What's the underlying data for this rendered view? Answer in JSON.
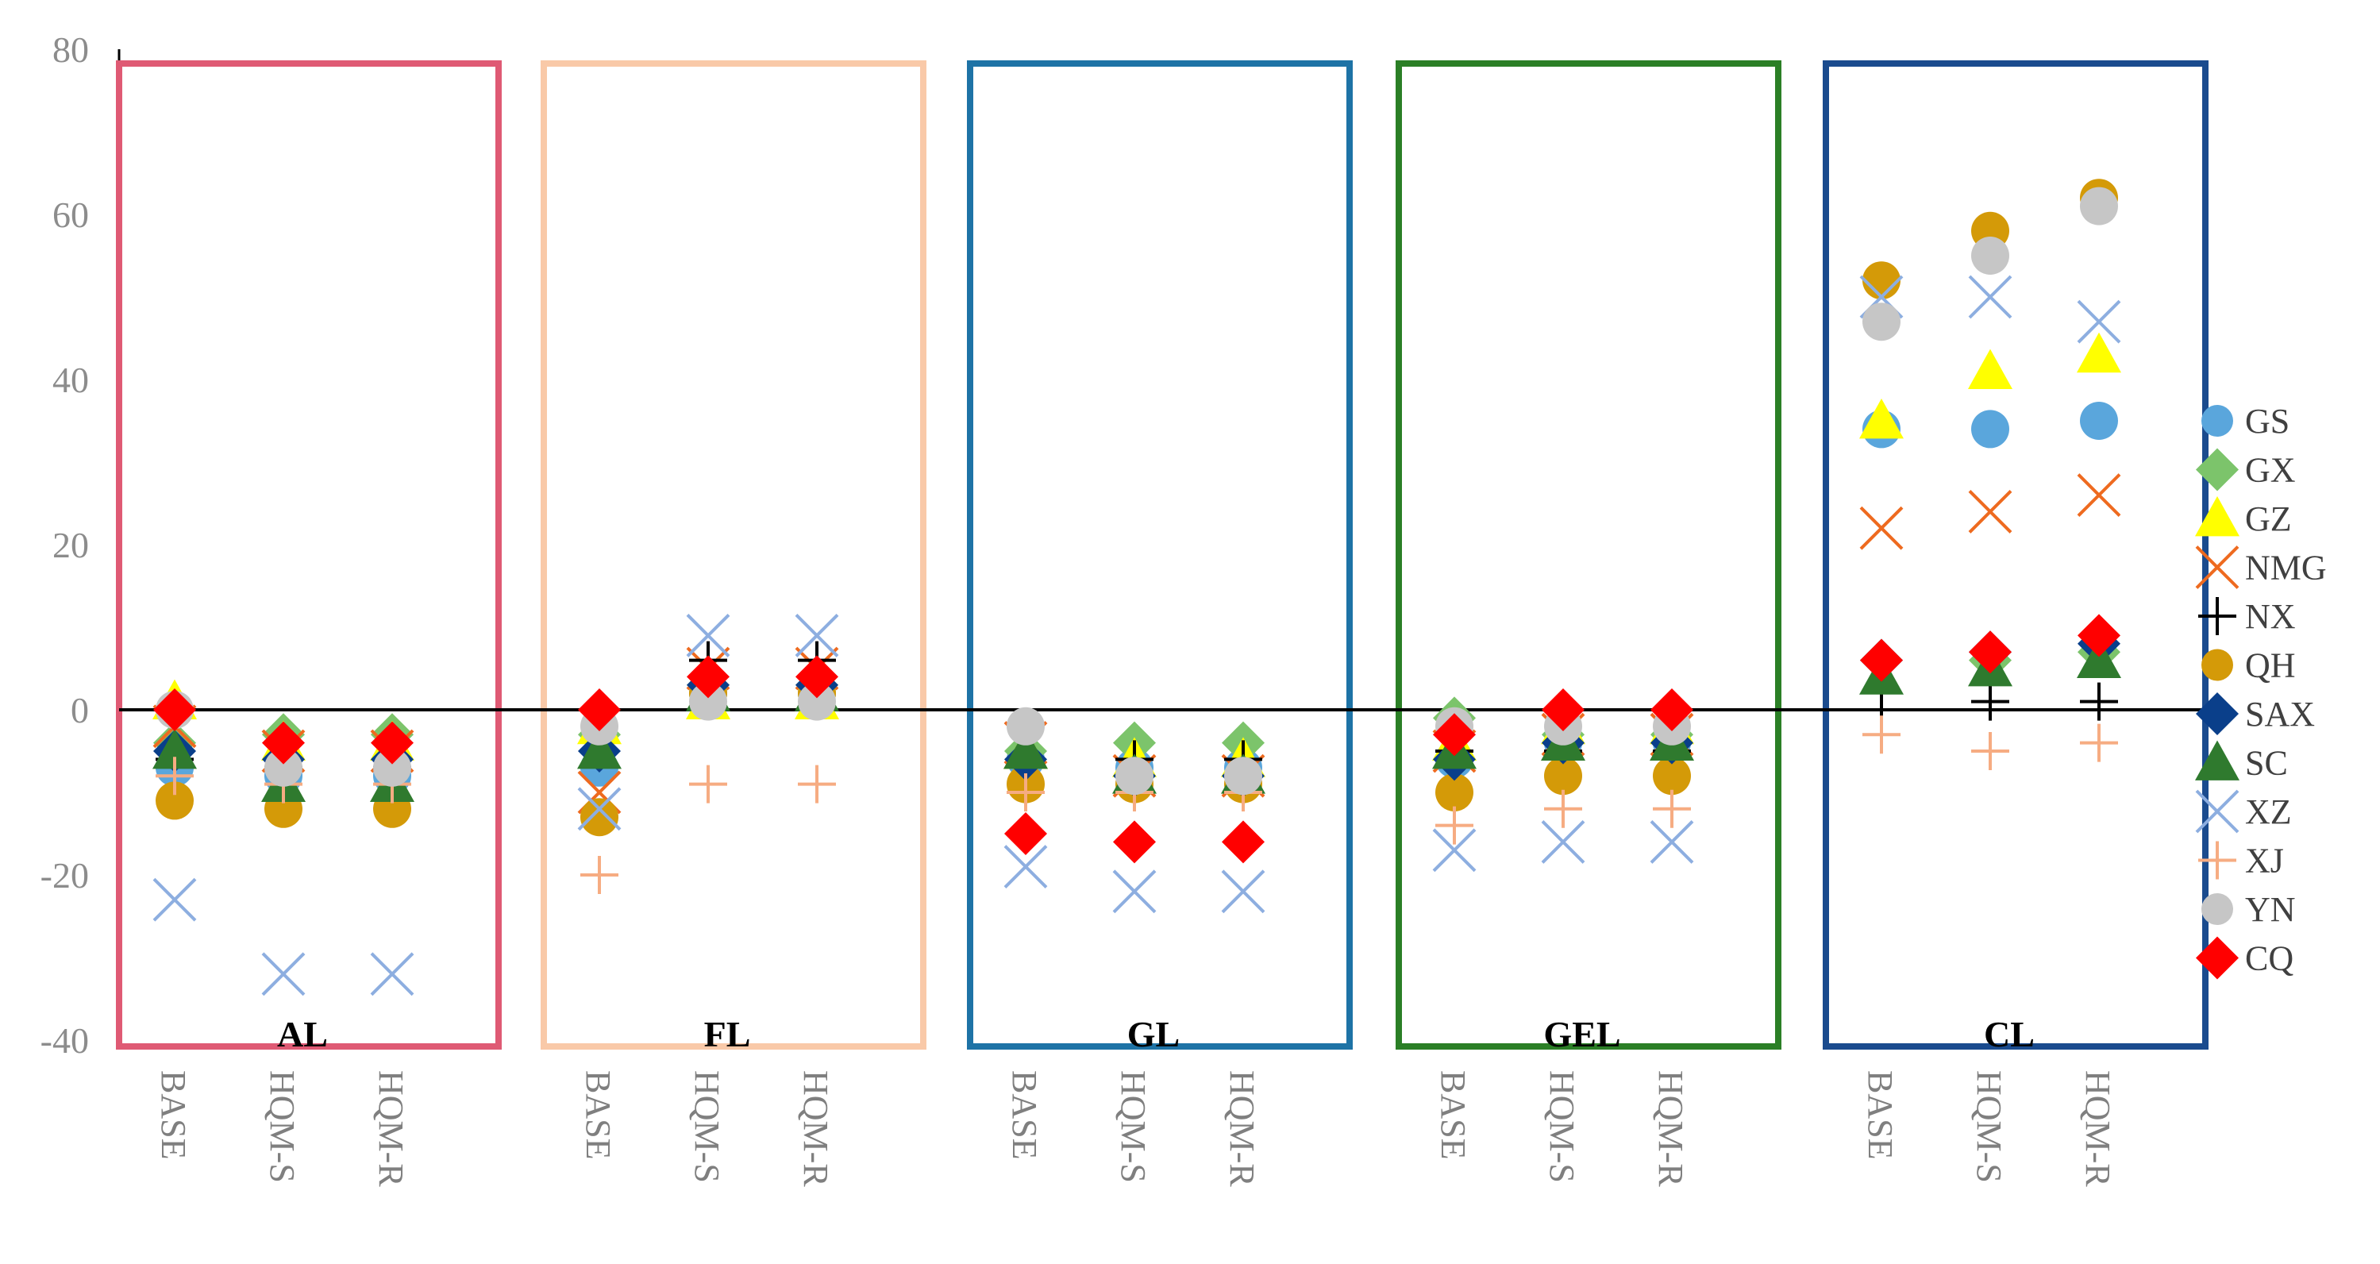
{
  "chart_data": {
    "type": "scatter",
    "title": "",
    "xlabel": "",
    "ylabel": "",
    "ylim": [
      -40,
      80
    ],
    "yticks": [
      "80",
      "60",
      "40",
      "20",
      "0",
      "-20",
      "-40"
    ],
    "ytick_values": [
      80,
      60,
      40,
      20,
      0,
      -20,
      -40
    ],
    "scenarios": [
      "BASE",
      "HQM-S",
      "HQM-R"
    ],
    "groups": [
      {
        "label": "AL",
        "color": "#df5a74"
      },
      {
        "label": "FL",
        "color": "#f9c9a8"
      },
      {
        "label": "GL",
        "color": "#1e73a6"
      },
      {
        "label": "GEL",
        "color": "#2b7f26"
      },
      {
        "label": "CL",
        "color": "#1a4b8e"
      }
    ],
    "series": [
      {
        "name": "GS",
        "marker": "circle",
        "color": "#5aa6dc",
        "values": [
          [
            -7,
            -8,
            -8
          ],
          [
            -7,
            2,
            2
          ],
          [
            -6,
            -7,
            -7
          ],
          [
            -6,
            -4,
            -4
          ],
          [
            34,
            34,
            35
          ]
        ]
      },
      {
        "name": "GX",
        "marker": "diamond",
        "color": "#7cc46b",
        "values": [
          [
            -4,
            -3,
            -3
          ],
          [
            -3,
            3,
            3
          ],
          [
            -5,
            -4,
            -4
          ],
          [
            -1,
            -3,
            -3
          ],
          [
            6,
            6,
            7
          ]
        ]
      },
      {
        "name": "GZ",
        "marker": "triangle",
        "color": "#ffff00",
        "values": [
          [
            1,
            -4,
            -4
          ],
          [
            -2,
            1,
            1
          ],
          [
            -5,
            -6,
            -6
          ],
          [
            -4,
            -2,
            -2
          ],
          [
            35,
            41,
            43
          ]
        ]
      },
      {
        "name": "NMG",
        "marker": "x",
        "color": "#ee6a1f",
        "values": [
          [
            -2,
            -5,
            -5
          ],
          [
            -10,
            5,
            5
          ],
          [
            -4,
            -8,
            -8
          ],
          [
            -5,
            -3,
            -3
          ],
          [
            22,
            24,
            26
          ]
        ]
      },
      {
        "name": "NX",
        "marker": "plus",
        "color": "#000000",
        "values": [
          [
            -6,
            -7,
            -7
          ],
          [
            -5,
            6,
            6
          ],
          [
            -6,
            -6,
            -6
          ],
          [
            -5,
            -5,
            -5
          ],
          [
            0,
            1,
            1
          ]
        ]
      },
      {
        "name": "QH",
        "marker": "circle",
        "color": "#d49a08",
        "values": [
          [
            -11,
            -12,
            -12
          ],
          [
            -13,
            2,
            2
          ],
          [
            -9,
            -9,
            -9
          ],
          [
            -10,
            -8,
            -8
          ],
          [
            52,
            58,
            62
          ]
        ]
      },
      {
        "name": "SAX",
        "marker": "diamond",
        "color": "#0a3f8a",
        "values": [
          [
            -5,
            -6,
            -6
          ],
          [
            -5,
            3,
            3
          ],
          [
            -6,
            -8,
            -8
          ],
          [
            -6,
            -4,
            -4
          ],
          [
            6,
            7,
            8
          ]
        ]
      },
      {
        "name": "SC",
        "marker": "triangle",
        "color": "#2f7a2e",
        "values": [
          [
            -5,
            -9,
            -9
          ],
          [
            -5,
            2,
            2
          ],
          [
            -5,
            -8,
            -8
          ],
          [
            -5,
            -4,
            -4
          ],
          [
            4,
            5,
            6
          ]
        ]
      },
      {
        "name": "XZ",
        "marker": "x",
        "color": "#8daee0",
        "values": [
          [
            -23,
            -32,
            -32
          ],
          [
            -12,
            9,
            9
          ],
          [
            -19,
            -22,
            -22
          ],
          [
            -17,
            -16,
            -16
          ],
          [
            50,
            50,
            47
          ]
        ]
      },
      {
        "name": "XJ",
        "marker": "plus",
        "color": "#f6ac82",
        "values": [
          [
            -8,
            -9,
            -9
          ],
          [
            -20,
            -9,
            -9
          ],
          [
            -10,
            -10,
            -10
          ],
          [
            -14,
            -12,
            -12
          ],
          [
            -3,
            -5,
            -4
          ]
        ]
      },
      {
        "name": "YN",
        "marker": "circle",
        "color": "#c6c6c6",
        "values": [
          [
            0,
            -7,
            -7
          ],
          [
            -2,
            1,
            1
          ],
          [
            -2,
            -8,
            -8
          ],
          [
            -2,
            -2,
            -2
          ],
          [
            47,
            55,
            61
          ]
        ]
      },
      {
        "name": "CQ",
        "marker": "diamond",
        "color": "#ff0000",
        "values": [
          [
            0,
            -4,
            -4
          ],
          [
            0,
            4,
            4
          ],
          [
            -15,
            -16,
            -16
          ],
          [
            -3,
            0,
            0
          ],
          [
            6,
            7,
            9
          ]
        ]
      }
    ]
  }
}
